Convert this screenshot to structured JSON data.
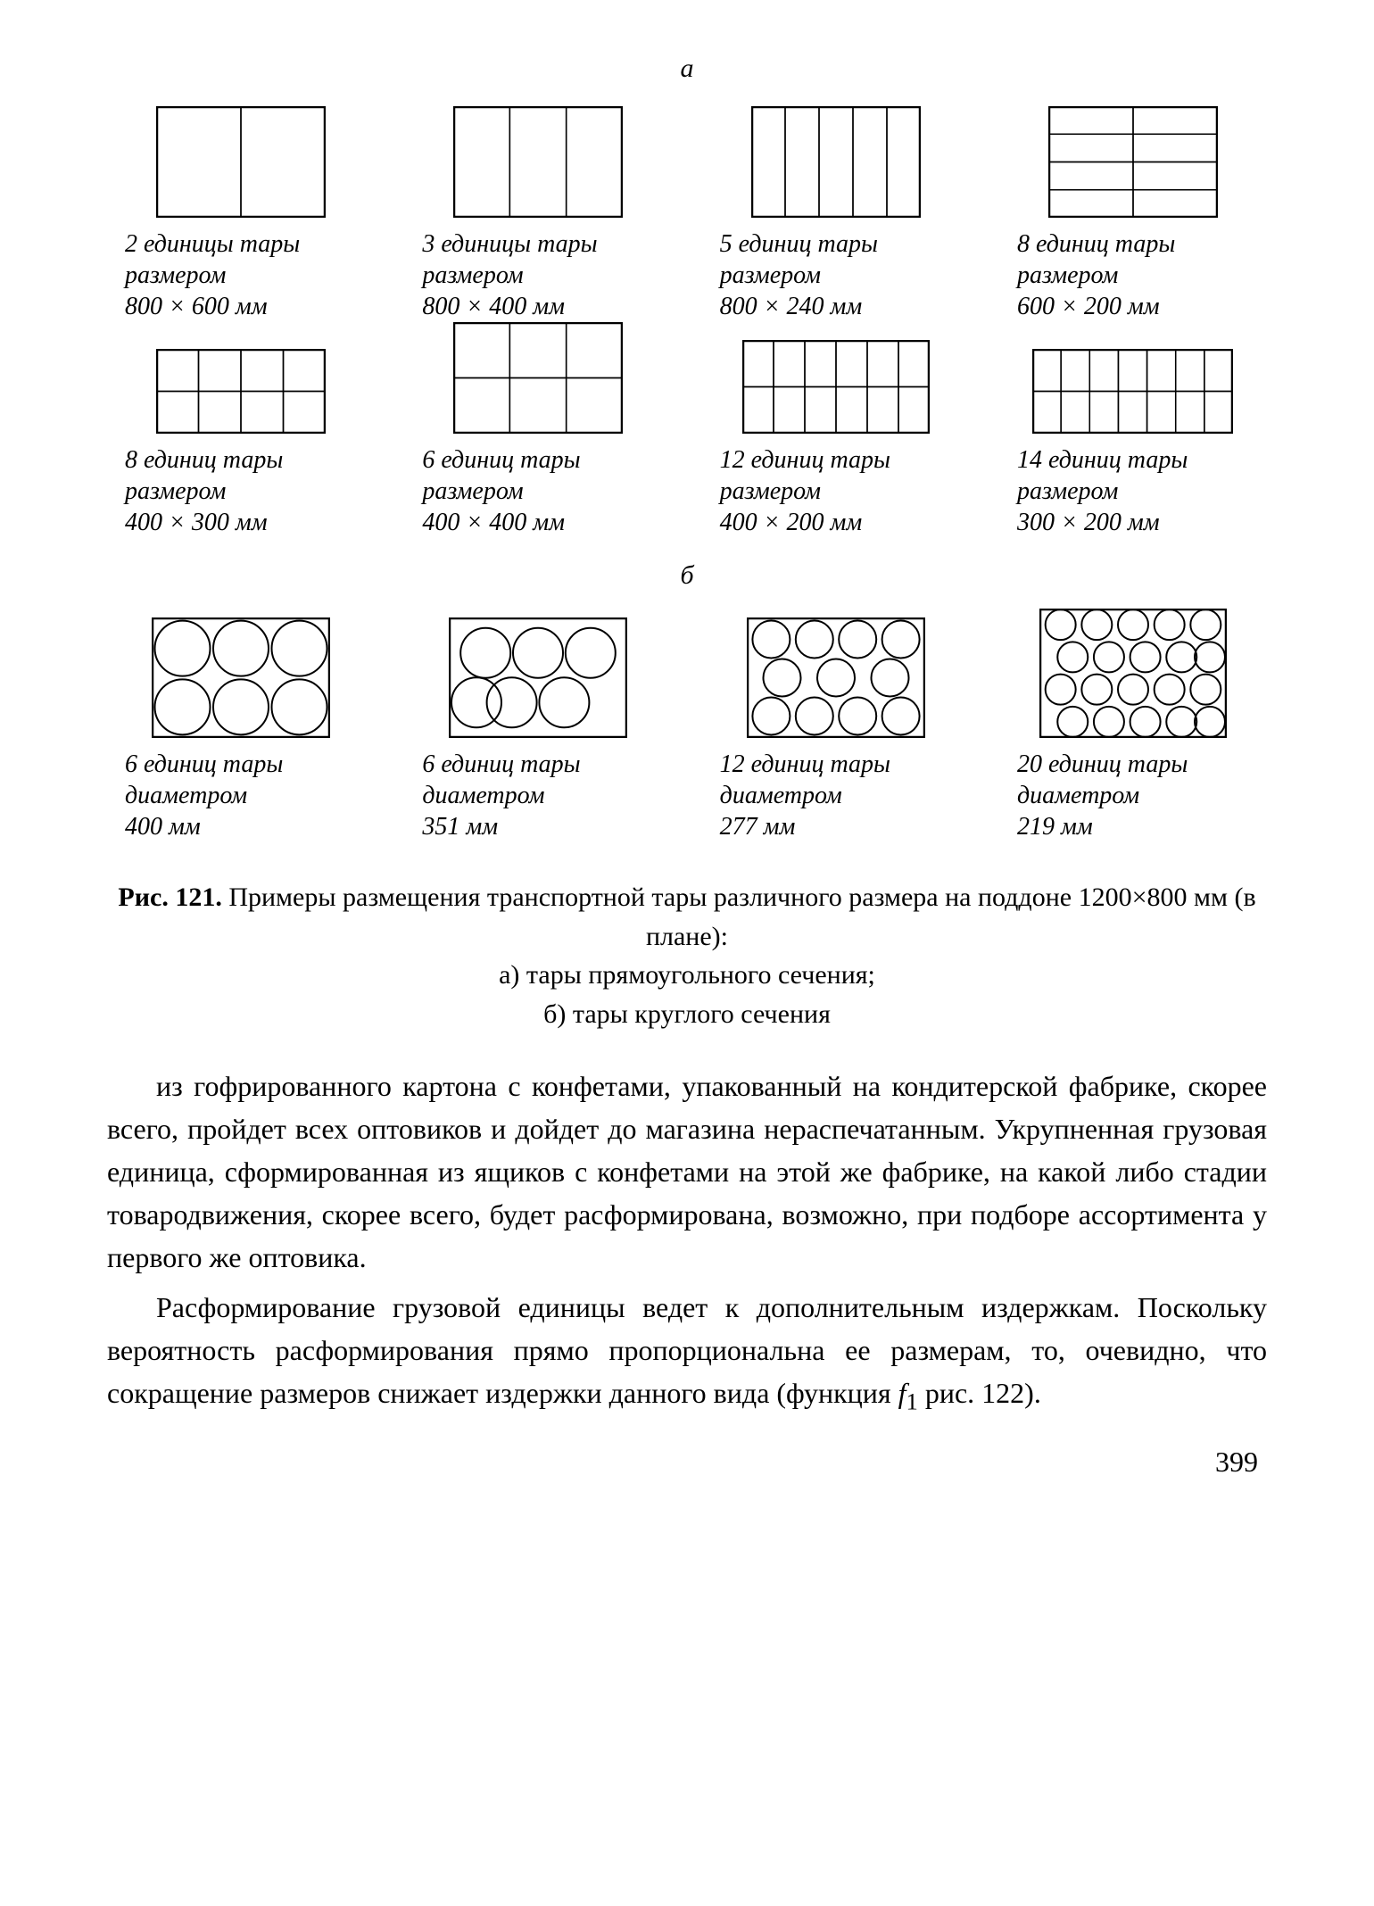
{
  "section_a_label": "а",
  "section_b_label": "б",
  "row1": [
    {
      "count": "2 единицы тары",
      "size_label": "размером",
      "size": "800 × 600 мм",
      "pallet_w": 190,
      "pallet_h": 125,
      "cols": 2,
      "rows": 1
    },
    {
      "count": "3 единицы тары",
      "size_label": "размером",
      "size": "800 × 400 мм",
      "pallet_w": 190,
      "pallet_h": 125,
      "cols": 3,
      "rows": 1
    },
    {
      "count": "5 единиц тары",
      "size_label": "размером",
      "size": "800 × 240 мм",
      "pallet_w": 190,
      "pallet_h": 125,
      "cols": 5,
      "rows": 1
    },
    {
      "count": "8 единиц тары",
      "size_label": "размером",
      "size": "600 × 200 мм",
      "pallet_w": 190,
      "pallet_h": 125,
      "cols": 2,
      "rows": 4
    }
  ],
  "row2": [
    {
      "count": "8 единиц тары",
      "size_label": "размером",
      "size": "400 × 300 мм",
      "pallet_w": 190,
      "pallet_h": 95,
      "cols": 4,
      "rows": 2
    },
    {
      "count": "6 единиц тары",
      "size_label": "размером",
      "size": "400 × 400 мм",
      "pallet_w": 190,
      "pallet_h": 125,
      "cols": 3,
      "rows": 2
    },
    {
      "count": "12 единиц тары",
      "size_label": "размером",
      "size": "400 × 200 мм",
      "pallet_w": 210,
      "pallet_h": 105,
      "cols": 6,
      "rows": 2
    },
    {
      "count": "14 единиц тары",
      "size_label": "размером",
      "size": "300 × 200 мм",
      "pallet_w": 225,
      "pallet_h": 95,
      "cols": 7,
      "rows": 2
    }
  ],
  "row3": [
    {
      "count": "6 единиц тары",
      "size_label": "диаметром",
      "size": "400 мм",
      "pallet_w": 200,
      "pallet_h": 135,
      "circle_layout": "grid",
      "diam": 62,
      "ccols": 3,
      "crows": 2
    },
    {
      "count": "6 единиц тары",
      "size_label": "диаметром",
      "size": "351 мм",
      "pallet_w": 200,
      "pallet_h": 135,
      "circle_layout": "tri6",
      "diam": 56
    },
    {
      "count": "12 единиц тары",
      "size_label": "диаметром",
      "size": "277 мм",
      "pallet_w": 200,
      "pallet_h": 135,
      "circle_layout": "rows434",
      "diam": 42
    },
    {
      "count": "20 единиц тары",
      "size_label": "диаметром",
      "size": "219 мм",
      "pallet_w": 210,
      "pallet_h": 145,
      "circle_layout": "rows5555",
      "diam": 34
    }
  ],
  "fig_caption": {
    "bold": "Рис. 121.",
    "line1": " Примеры размещения транспортной тары различного размера на поддоне 1200×800 мм (в плане):",
    "line2": "а) тары прямоугольного сечения;",
    "line3": "б) тары круглого сечения"
  },
  "para1": "из гофрированного картона с конфетами, упакованный на кондитерской фабрике, скорее всего, пройдет всех оптовиков и дойдет до магазина нераспечатанным. Укрупненная грузовая единица, сформированная из ящиков с конфетами на этой же фабрике, на какой либо стадии товародвижения, скорее всего, будет расформирована, возможно, при подборе ассортимента у первого же оптовика.",
  "para2_a": "Расформирование грузовой единицы ведет к дополнительным издержкам. Поскольку вероятность расформирования прямо пропорциональна ее размерам, то, очевидно, что сокращение размеров снижает издержки данного вида (функция ",
  "para2_f": "f",
  "para2_sub": "1",
  "para2_b": " рис. 122).",
  "page_number": "399"
}
